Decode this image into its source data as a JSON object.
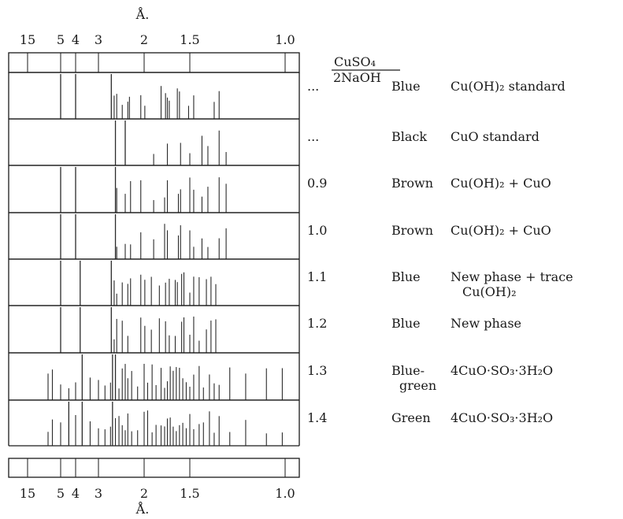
{
  "chart_data": {
    "type": "powder-diffraction-pattern",
    "x_unit": "Å.",
    "x_axis_ticks": [
      "15",
      "5",
      "4",
      "3",
      "2",
      "1.5",
      "1.0"
    ],
    "ratio_header": {
      "numerator": "CuSO₄",
      "denominator": "2NaOH"
    },
    "rows": [
      {
        "ratio": "...",
        "color": "Blue",
        "phase": [
          "Cu(OH)₂ standard"
        ],
        "lines_d": [
          5.0,
          4.0,
          2.63,
          2.56,
          2.5,
          2.38,
          2.27,
          2.24,
          2.05,
          1.99,
          1.78,
          1.73,
          1.71,
          1.69,
          1.61,
          1.59,
          1.51,
          1.47,
          1.33,
          1.3
        ],
        "strong_d": [
          5.0,
          4.0,
          2.63
        ]
      },
      {
        "ratio": "...",
        "color": "Black",
        "phase": [
          "CuO standard"
        ],
        "lines_d": [
          2.53,
          2.32,
          1.87,
          1.71,
          1.58,
          1.5,
          1.41,
          1.37,
          1.3,
          1.26
        ],
        "strong_d": [
          2.53,
          2.32
        ]
      },
      {
        "ratio": "0.9",
        "color": "Brown",
        "phase": [
          "Cu(OH)₂ + CuO"
        ],
        "lines_d": [
          5.0,
          4.0,
          2.53,
          2.5,
          2.32,
          2.22,
          2.05,
          1.87,
          1.74,
          1.71,
          1.6,
          1.58,
          1.5,
          1.47,
          1.41,
          1.37,
          1.3,
          1.26
        ],
        "strong_d": [
          5.0,
          4.0,
          2.53
        ]
      },
      {
        "ratio": "1.0",
        "color": "Brown",
        "phase": [
          "Cu(OH)₂ + CuO"
        ],
        "lines_d": [
          5.0,
          4.0,
          2.53,
          2.5,
          2.32,
          2.22,
          2.05,
          1.87,
          1.74,
          1.71,
          1.6,
          1.58,
          1.5,
          1.47,
          1.41,
          1.37,
          1.3,
          1.26
        ],
        "strong_d": [
          5.0,
          4.0,
          2.53
        ]
      },
      {
        "ratio": "1.1",
        "color": "Blue",
        "phase": [
          "New phase + trace",
          "Cu(OH)₂"
        ],
        "lines_d": [
          5.0,
          3.75,
          2.63,
          2.56,
          2.5,
          2.38,
          2.27,
          2.22,
          2.05,
          1.99,
          1.9,
          1.8,
          1.73,
          1.69,
          1.63,
          1.61,
          1.57,
          1.55,
          1.5,
          1.47,
          1.43,
          1.38,
          1.35,
          1.32
        ],
        "strong_d": [
          5.0,
          3.75,
          2.63
        ]
      },
      {
        "ratio": "1.2",
        "color": "Blue",
        "phase": [
          "New phase"
        ],
        "lines_d": [
          5.0,
          3.75,
          2.63,
          2.56,
          2.5,
          2.38,
          2.27,
          2.05,
          1.99,
          1.9,
          1.8,
          1.73,
          1.69,
          1.63,
          1.57,
          1.55,
          1.5,
          1.47,
          1.43,
          1.38,
          1.35,
          1.32
        ],
        "strong_d": [
          5.0,
          3.75,
          2.63
        ]
      },
      {
        "ratio": "1.3",
        "color": "Blue-green",
        "color_lines": [
          "Blue-",
          "green"
        ],
        "phase": [
          "4CuO·SO₃·3H₂O"
        ],
        "lines_d": [
          6.7,
          6.0,
          5.0,
          4.4,
          4.0,
          3.65,
          3.3,
          3.0,
          2.8,
          2.65,
          2.6,
          2.53,
          2.45,
          2.38,
          2.32,
          2.27,
          2.2,
          2.1,
          2.0,
          1.95,
          1.89,
          1.84,
          1.78,
          1.74,
          1.71,
          1.68,
          1.65,
          1.62,
          1.59,
          1.56,
          1.53,
          1.5,
          1.47,
          1.43,
          1.4,
          1.36,
          1.33,
          1.3,
          1.24,
          1.16,
          1.07,
          1.01
        ],
        "strong_d": [
          3.65,
          2.6,
          2.53
        ]
      },
      {
        "ratio": "1.4",
        "color": "Green",
        "phase": [
          "4CuO·SO₃·3H₂O"
        ],
        "lines_d": [
          6.7,
          6.0,
          5.0,
          4.4,
          4.0,
          3.65,
          3.3,
          3.0,
          2.8,
          2.65,
          2.6,
          2.53,
          2.45,
          2.38,
          2.32,
          2.27,
          2.2,
          2.1,
          2.0,
          1.95,
          1.89,
          1.84,
          1.78,
          1.74,
          1.71,
          1.68,
          1.65,
          1.62,
          1.59,
          1.56,
          1.53,
          1.5,
          1.47,
          1.43,
          1.4,
          1.36,
          1.33,
          1.3,
          1.24,
          1.16,
          1.07,
          1.01
        ],
        "strong_d": [
          4.4,
          3.65,
          2.6
        ]
      }
    ]
  }
}
